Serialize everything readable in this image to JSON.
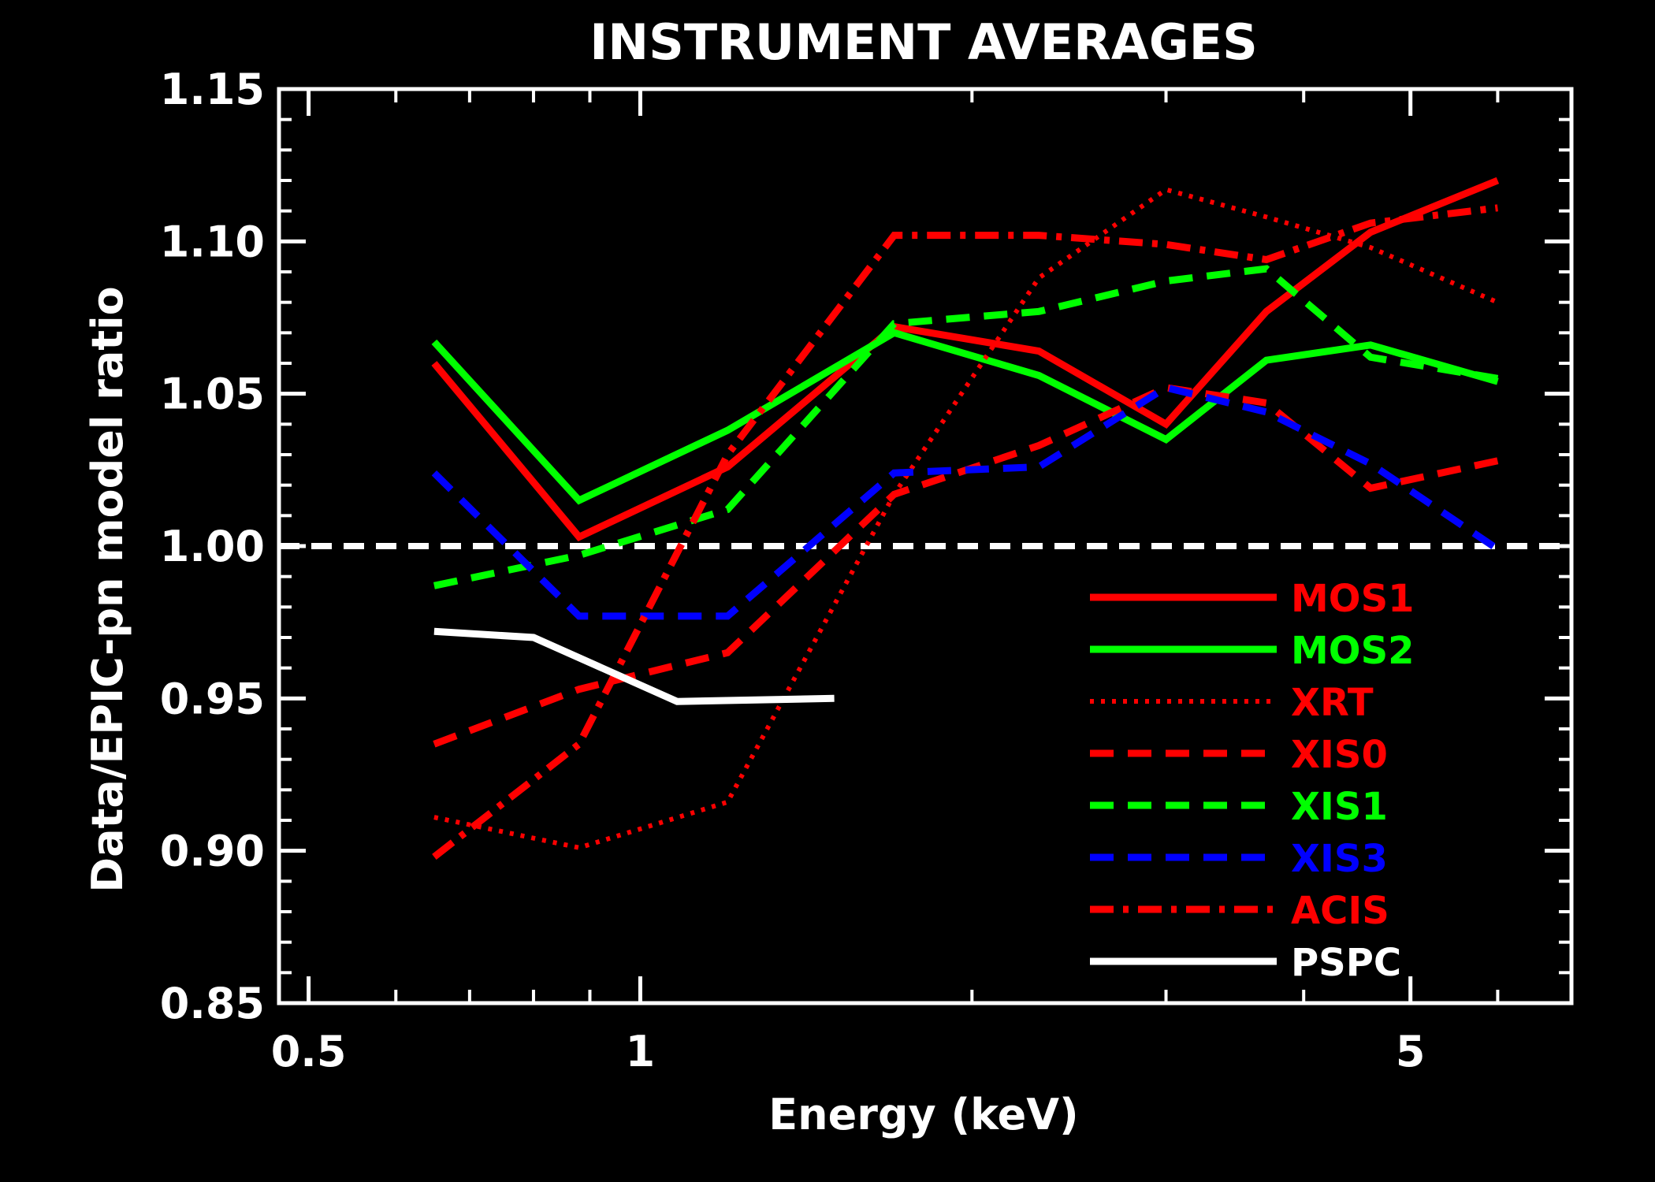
{
  "chart_data": {
    "type": "line",
    "title": "INSTRUMENT AVERAGES",
    "xlabel": "Energy (keV)",
    "ylabel": "Data/EPIC-pn model ratio",
    "x_scale": "log",
    "xlim": [
      0.47,
      7.0
    ],
    "ylim": [
      0.85,
      1.15
    ],
    "x_ticks": [
      {
        "value": 0.5,
        "label": "0.5"
      },
      {
        "value": 1,
        "label": "1"
      },
      {
        "value": 5,
        "label": "5"
      }
    ],
    "x_minor_ticks": [
      0.6,
      0.7,
      0.8,
      0.9,
      2,
      3,
      4,
      6,
      7
    ],
    "y_ticks": [
      {
        "value": 0.85,
        "label": "0.85"
      },
      {
        "value": 0.9,
        "label": "0.90"
      },
      {
        "value": 0.95,
        "label": "0.95"
      },
      {
        "value": 1.0,
        "label": "1.00"
      },
      {
        "value": 1.05,
        "label": "1.05"
      },
      {
        "value": 1.1,
        "label": "1.10"
      },
      {
        "value": 1.15,
        "label": "1.15"
      }
    ],
    "reference_line": {
      "y": 1.0,
      "color": "#ffffff",
      "style": "dashed"
    },
    "grid": false,
    "legend_position": "bottom-right",
    "series": [
      {
        "name": "MOS1",
        "color": "#ff0000",
        "style": "solid",
        "x": [
          0.65,
          0.88,
          1.2,
          1.7,
          2.3,
          3.0,
          3.7,
          4.6,
          6.0
        ],
        "y": [
          1.06,
          1.003,
          1.026,
          1.072,
          1.064,
          1.04,
          1.077,
          1.103,
          1.12
        ]
      },
      {
        "name": "MOS2",
        "color": "#00ff00",
        "style": "solid",
        "x": [
          0.65,
          0.88,
          1.2,
          1.7,
          2.3,
          3.0,
          3.7,
          4.6,
          6.0
        ],
        "y": [
          1.067,
          1.015,
          1.038,
          1.07,
          1.056,
          1.035,
          1.061,
          1.066,
          1.054
        ]
      },
      {
        "name": "XRT",
        "color": "#ff0000",
        "style": "dotted",
        "x": [
          0.65,
          0.88,
          1.2,
          1.7,
          2.3,
          3.0,
          3.7,
          4.6,
          6.0
        ],
        "y": [
          0.911,
          0.901,
          0.916,
          1.017,
          1.088,
          1.117,
          1.108,
          1.098,
          1.08
        ]
      },
      {
        "name": "XIS0",
        "color": "#ff0000",
        "style": "dashed",
        "x": [
          0.65,
          0.88,
          1.2,
          1.7,
          2.3,
          3.0,
          3.7,
          4.6,
          6.0
        ],
        "y": [
          0.935,
          0.953,
          0.965,
          1.017,
          1.033,
          1.052,
          1.047,
          1.019,
          1.028
        ]
      },
      {
        "name": "XIS1",
        "color": "#00ff00",
        "style": "dashed",
        "x": [
          0.65,
          0.88,
          1.2,
          1.7,
          2.3,
          3.0,
          3.7,
          4.6,
          6.0
        ],
        "y": [
          0.987,
          0.997,
          1.012,
          1.073,
          1.077,
          1.087,
          1.091,
          1.062,
          1.055
        ]
      },
      {
        "name": "XIS3",
        "color": "#0000ff",
        "style": "dashed",
        "x": [
          0.65,
          0.88,
          1.2,
          1.7,
          2.3,
          3.0,
          3.7,
          4.6,
          6.0
        ],
        "y": [
          1.024,
          0.977,
          0.977,
          1.024,
          1.026,
          1.052,
          1.044,
          1.027,
          0.999
        ]
      },
      {
        "name": "ACIS",
        "color": "#ff0000",
        "style": "dashdot",
        "x": [
          0.65,
          0.88,
          1.2,
          1.7,
          2.3,
          3.0,
          3.7,
          4.6,
          6.0
        ],
        "y": [
          0.898,
          0.935,
          1.03,
          1.102,
          1.102,
          1.099,
          1.094,
          1.106,
          1.111
        ]
      },
      {
        "name": "PSPC",
        "color": "#ffffff",
        "style": "solid",
        "x": [
          0.65,
          0.8,
          1.08,
          1.5
        ],
        "y": [
          0.972,
          0.97,
          0.949,
          0.95
        ]
      }
    ]
  }
}
